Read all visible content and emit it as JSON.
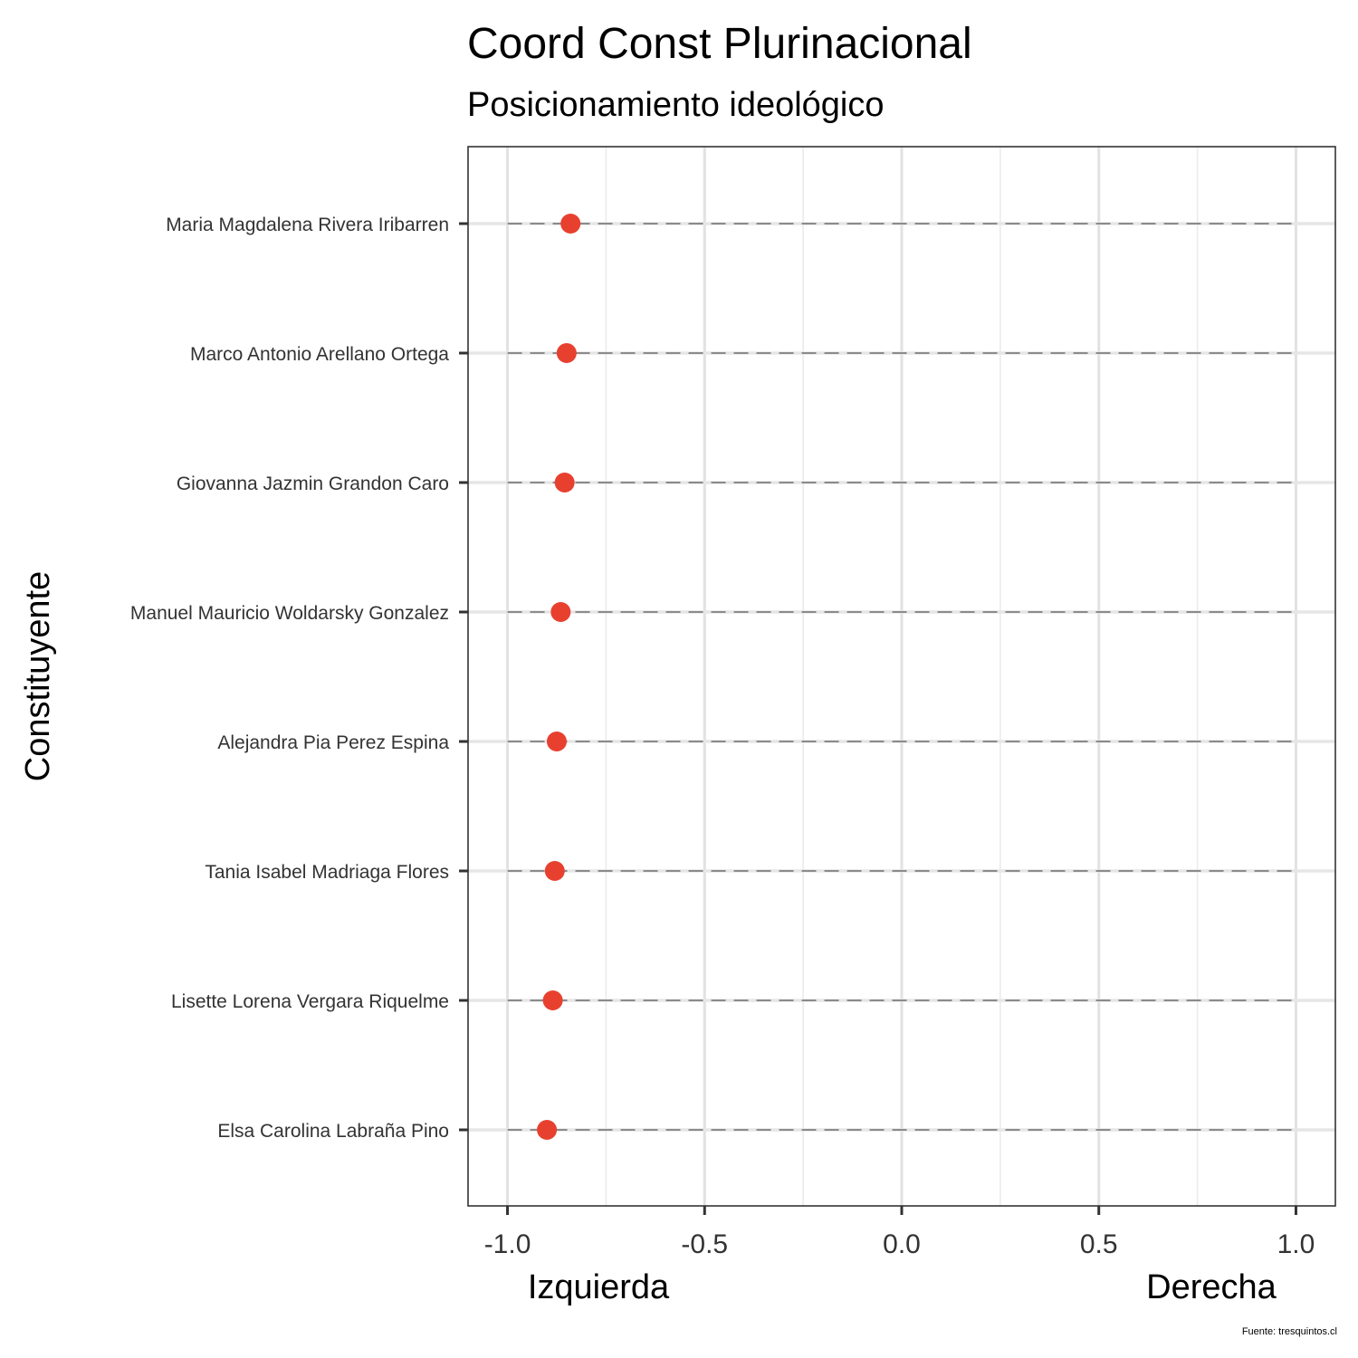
{
  "chart_data": {
    "type": "scatter",
    "title": "Coord Const Plurinacional",
    "subtitle": "Posicionamiento ideológico",
    "ylabel": "Constituyente",
    "x_left_label": "Izquierda",
    "x_right_label": "Derecha",
    "caption": "Fuente: tresquintos.cl",
    "xlim": [
      -1.1,
      1.1
    ],
    "x_ticks": [
      -1.0,
      -0.5,
      0.0,
      0.5,
      1.0
    ],
    "x_tick_labels": [
      "-1.0",
      "-0.5",
      "0.0",
      "0.5",
      "1.0"
    ],
    "x_minor_ticks": [
      -0.75,
      -0.25,
      0.25,
      0.75
    ],
    "segment_range": [
      -1.0,
      1.0
    ],
    "grid": true,
    "legend": "none",
    "point_color": "#E8402F",
    "categories": [
      "Maria Magdalena Rivera Iribarren",
      "Marco Antonio Arellano Ortega",
      "Giovanna Jazmin Grandon Caro",
      "Manuel Mauricio Woldarsky Gonzalez",
      "Alejandra Pia Perez Espina",
      "Tania Isabel Madriaga Flores",
      "Lisette Lorena Vergara Riquelme",
      "Elsa Carolina Labraña Pino"
    ],
    "values": [
      -0.84,
      -0.85,
      -0.855,
      -0.865,
      -0.875,
      -0.88,
      -0.885,
      -0.9
    ]
  }
}
